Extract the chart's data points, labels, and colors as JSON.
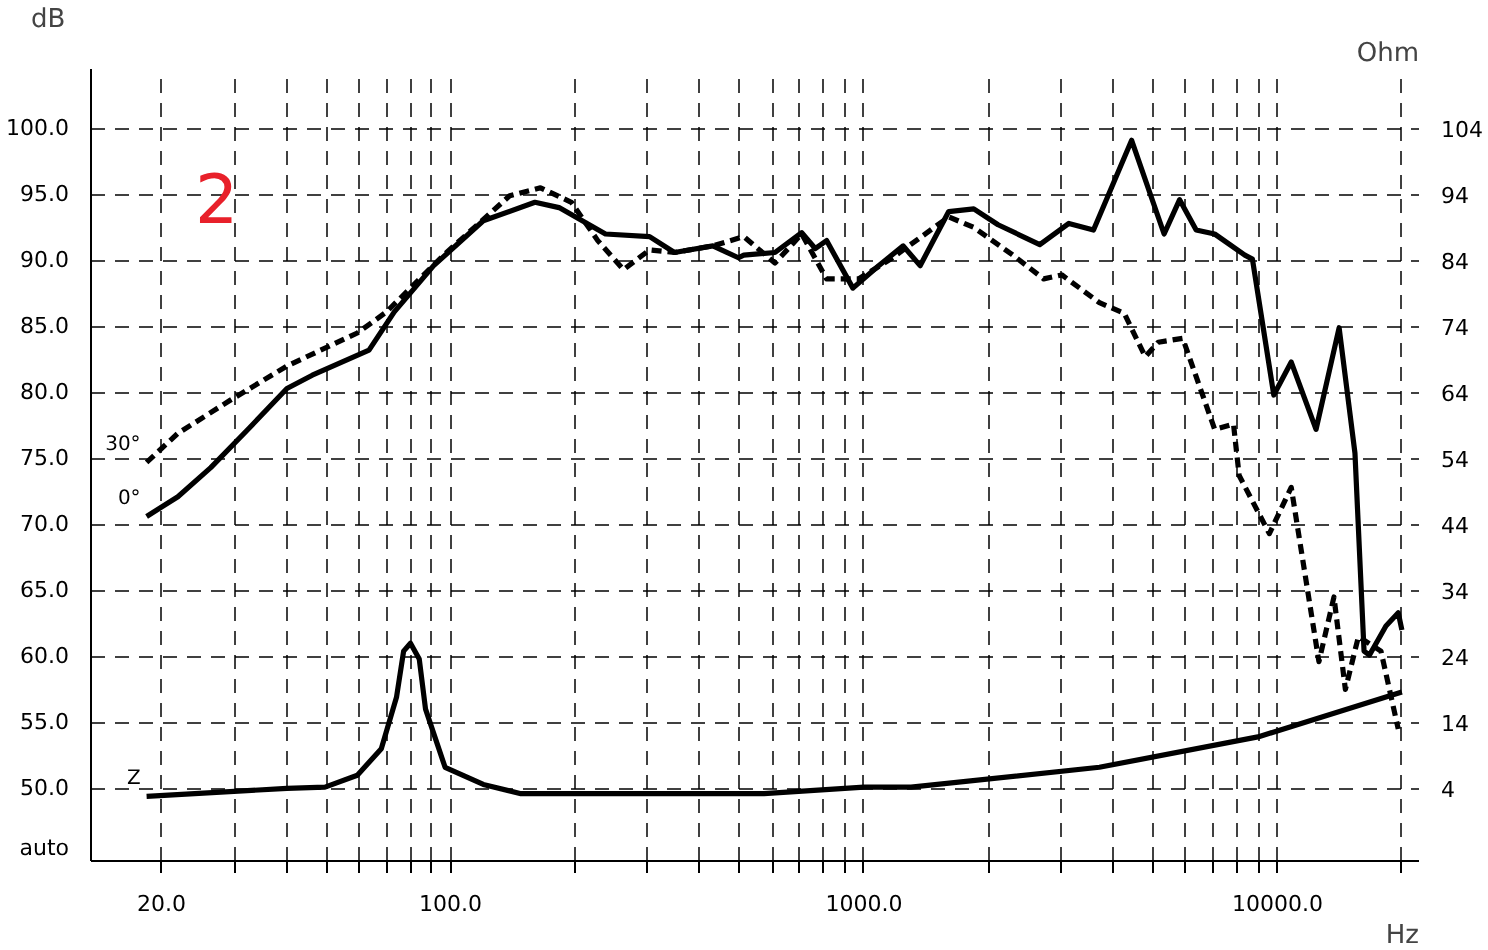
{
  "chart_data": {
    "type": "line",
    "xlabel": "Hz",
    "ylabel": "dB",
    "y2label": "Ohm",
    "annotations": [
      "2",
      "auto"
    ],
    "log": "x",
    "grid": true,
    "xlim": [
      13.5,
      22000
    ],
    "ylim": [
      44.5,
      104.5
    ],
    "y2lim": [
      -7,
      113
    ],
    "xticks": [
      {
        "value": 20,
        "label": "20.0"
      },
      {
        "value": 30,
        "label": null
      },
      {
        "value": 40,
        "label": null
      },
      {
        "value": 50,
        "label": null
      },
      {
        "value": 60,
        "label": null
      },
      {
        "value": 70,
        "label": null
      },
      {
        "value": 80,
        "label": null
      },
      {
        "value": 90,
        "label": null
      },
      {
        "value": 100,
        "label": "100.0"
      },
      {
        "value": 200,
        "label": null
      },
      {
        "value": 300,
        "label": null
      },
      {
        "value": 400,
        "label": null
      },
      {
        "value": 500,
        "label": null
      },
      {
        "value": 600,
        "label": null
      },
      {
        "value": 700,
        "label": null
      },
      {
        "value": 800,
        "label": null
      },
      {
        "value": 900,
        "label": null
      },
      {
        "value": 1000,
        "label": "1000.0"
      },
      {
        "value": 2000,
        "label": null
      },
      {
        "value": 3000,
        "label": null
      },
      {
        "value": 4000,
        "label": null
      },
      {
        "value": 5000,
        "label": null
      },
      {
        "value": 6000,
        "label": null
      },
      {
        "value": 7000,
        "label": null
      },
      {
        "value": 8000,
        "label": null
      },
      {
        "value": 9000,
        "label": null
      },
      {
        "value": 10000,
        "label": "10000.0"
      },
      {
        "value": 20000,
        "label": null
      }
    ],
    "yticks": [
      {
        "value": 50,
        "label": "50.0"
      },
      {
        "value": 55,
        "label": "55.0"
      },
      {
        "value": 60,
        "label": "60.0"
      },
      {
        "value": 65,
        "label": "65.0"
      },
      {
        "value": 70,
        "label": "70.0"
      },
      {
        "value": 75,
        "label": "75.0"
      },
      {
        "value": 80,
        "label": "80.0"
      },
      {
        "value": 85,
        "label": "85.0"
      },
      {
        "value": 90,
        "label": "90.0"
      },
      {
        "value": 95,
        "label": "95.0"
      },
      {
        "value": 100,
        "label": "100.0"
      }
    ],
    "y2ticks": [
      4,
      14,
      24,
      34,
      44,
      54,
      64,
      74,
      84,
      94,
      104
    ],
    "series": [
      {
        "name": "0°",
        "color": "#000000",
        "line_style": "solid",
        "x": [
          18.4,
          21.9,
          26.3,
          32.6,
          40.2,
          46.3,
          63.5,
          73.1,
          91,
          120,
          160,
          183,
          237,
          303,
          348,
          431,
          497,
          512,
          609,
          707,
          762,
          812,
          940,
          1085,
          1244,
          1367,
          1603,
          1843,
          2110,
          2662,
          3130,
          3590,
          4440,
          5320,
          5800,
          6360,
          7050,
          8340,
          8700,
          9800,
          10800,
          12400,
          14100,
          15400,
          16200,
          16700,
          18300,
          19600,
          20000
        ],
        "values": [
          70.6,
          72.1,
          74.3,
          77.3,
          80.3,
          81.3,
          83.2,
          86.1,
          89.6,
          93.0,
          94.4,
          94.0,
          92.0,
          91.8,
          90.6,
          91.1,
          90.2,
          90.4,
          90.6,
          92.1,
          90.9,
          91.5,
          87.9,
          89.6,
          91.1,
          89.6,
          93.7,
          93.9,
          92.7,
          91.2,
          92.8,
          92.3,
          99.1,
          92.0,
          94.6,
          92.3,
          92.0,
          90.4,
          90.1,
          79.8,
          82.3,
          77.2,
          84.9,
          75.4,
          60.4,
          60.1,
          62.3,
          63.3,
          62.0
        ]
      },
      {
        "name": "30°",
        "color": "#000000",
        "line_style": "dashed",
        "x": [
          18.4,
          21.9,
          29.3,
          40.2,
          59.5,
          70,
          97,
          139,
          165,
          196,
          227,
          262,
          303,
          348,
          431,
          512,
          609,
          707,
          812,
          970,
          1160,
          1603,
          1843,
          2270,
          2720,
          3010,
          3710,
          4260,
          4790,
          5150,
          5900,
          7050,
          7830,
          8080,
          9560,
          10800,
          12600,
          13700,
          14600,
          15700,
          17800,
          19600
        ],
        "values": [
          74.7,
          76.9,
          79.4,
          82.0,
          84.5,
          86.1,
          90.5,
          94.9,
          95.5,
          94.4,
          91.5,
          89.3,
          90.8,
          90.6,
          91.1,
          91.8,
          89.8,
          92.0,
          88.6,
          88.6,
          90.1,
          93.3,
          92.5,
          90.5,
          88.6,
          88.9,
          86.8,
          86.0,
          82.7,
          83.8,
          84.1,
          77.2,
          77.6,
          73.7,
          69.3,
          72.8,
          59.6,
          64.5,
          57.5,
          61.5,
          60.4,
          54.5
        ]
      },
      {
        "name": "Z",
        "color": "#000000",
        "line_style": "solid",
        "axis": "y2",
        "x": [
          18.4,
          40.2,
          49.7,
          59.5,
          68,
          74,
          77,
          80,
          84,
          87,
          97,
          120,
          148,
          573,
          1000,
          1300,
          3710,
          8970,
          20000
        ],
        "values": [
          2.8,
          4.0,
          4.2,
          6.0,
          10.0,
          17.8,
          24.8,
          26,
          23.6,
          16,
          7.2,
          4.6,
          3.2,
          3.2,
          4.2,
          4.2,
          7.2,
          11.8,
          18.6
        ]
      }
    ]
  }
}
